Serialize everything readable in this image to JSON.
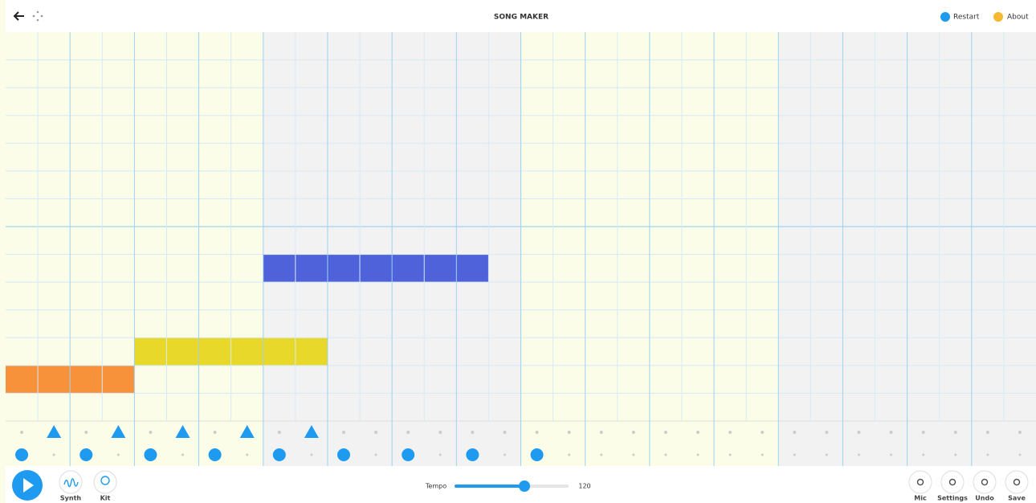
{
  "header": {
    "title": "SONG MAKER",
    "restart": "Restart",
    "about": "About"
  },
  "instruments": {
    "synth": "Synth",
    "kit": "Kit"
  },
  "tempo": {
    "label": "Tempo",
    "value": 120
  },
  "controls": {
    "mic": "Mic",
    "settings": "Settings",
    "undo": "Undo",
    "save": "Save"
  }
}
